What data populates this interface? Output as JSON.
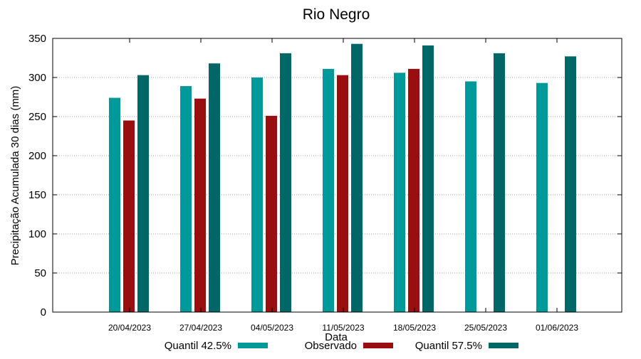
{
  "chart_data": {
    "type": "bar",
    "title": "Rio Negro",
    "xlabel": "Data",
    "ylabel": "Precipitação Acumulada 30 dias (mm)",
    "ylim": [
      0,
      350
    ],
    "yticks": [
      0,
      50,
      100,
      150,
      200,
      250,
      300,
      350
    ],
    "grid": true,
    "legend_position": "bottom",
    "categories": [
      "20/04/2023",
      "27/04/2023",
      "04/05/2023",
      "11/05/2023",
      "18/05/2023",
      "25/05/2023",
      "01/06/2023"
    ],
    "series": [
      {
        "name": "Quantil 42.5%",
        "color": "#009999",
        "values": [
          274,
          289,
          300,
          311,
          306,
          295,
          293
        ]
      },
      {
        "name": "Observado",
        "color": "#990f0f",
        "values": [
          245,
          273,
          251,
          303,
          311,
          null,
          null
        ]
      },
      {
        "name": "Quantil 57.5%",
        "color": "#006666",
        "values": [
          303,
          318,
          331,
          343,
          341,
          331,
          327
        ]
      }
    ]
  }
}
